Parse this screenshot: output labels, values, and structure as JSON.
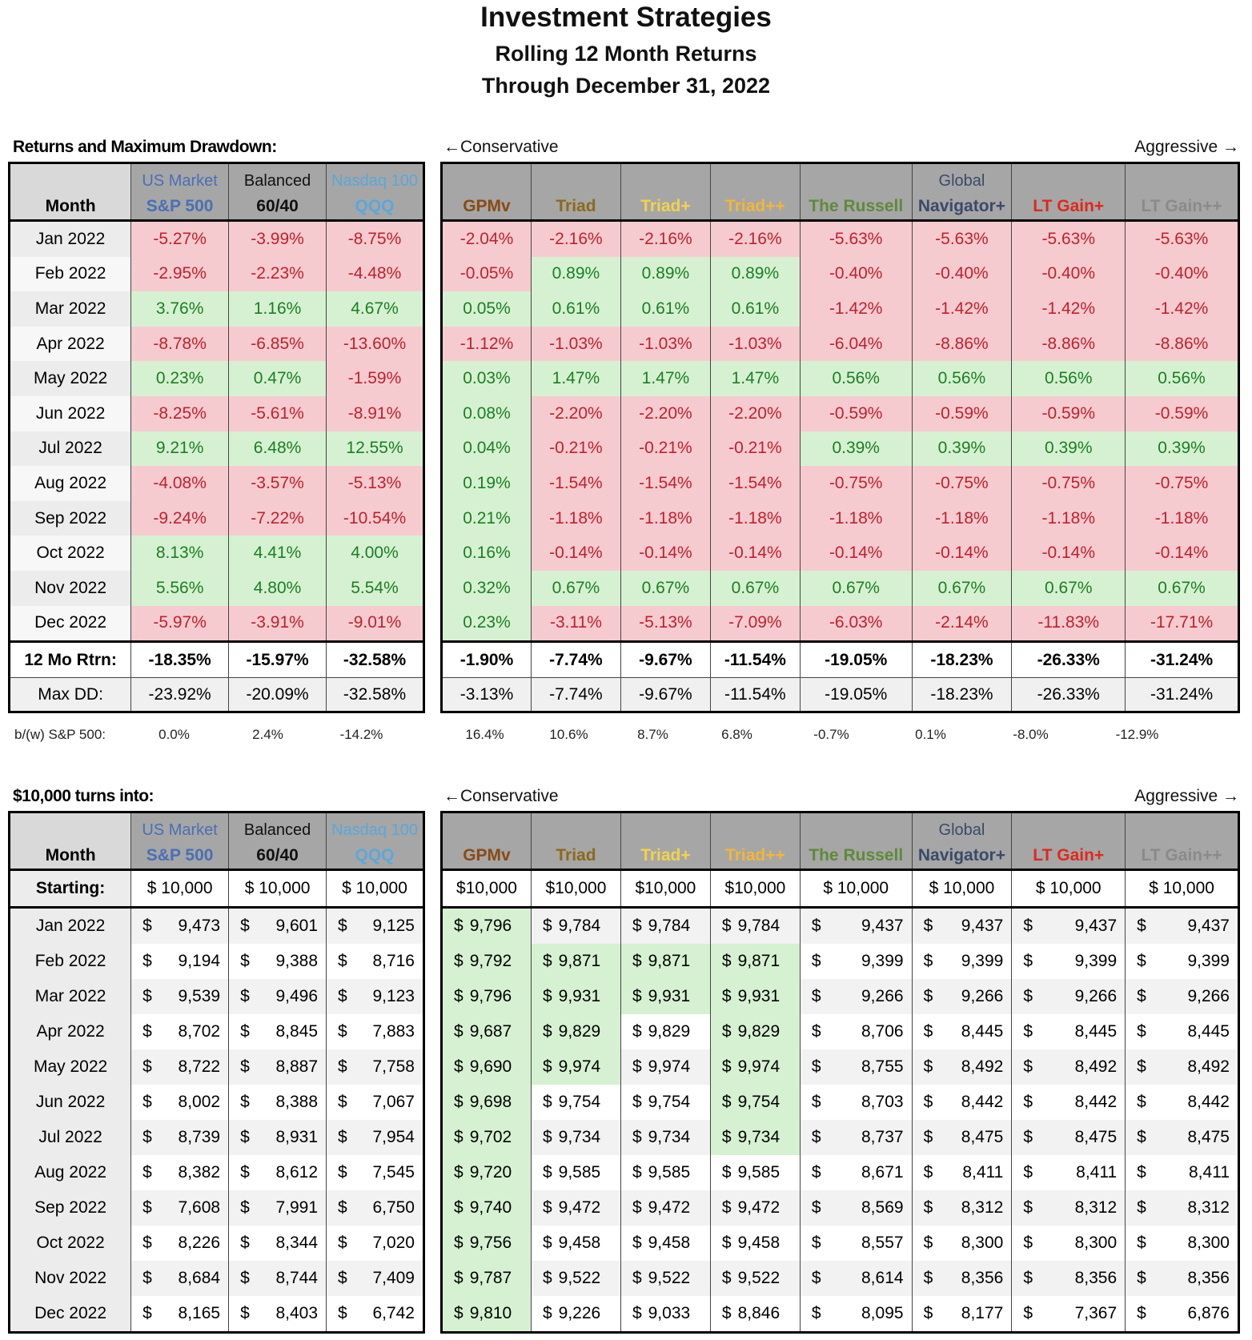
{
  "title": "Investment Strategies",
  "subtitle1": "Rolling 12 Month Returns",
  "subtitle2": "Through December 31, 2022",
  "colors": {
    "negative_bg": "#f6cbd0",
    "negative_text": "#c0212b",
    "positive_bg": "#d6f1d2",
    "positive_text": "#1b7f22",
    "header_bg": "#a6a6a6"
  },
  "labels": {
    "returns_section": "Returns and Maximum Drawdown:",
    "growth_section": "$10,000 turns into:",
    "conservative": "←Conservative",
    "aggressive": "Aggressive →",
    "month": "Month",
    "total_label": "12 Mo Rtrn:",
    "maxdd_label": "Max DD:",
    "bw_label": "b/(w) S&P 500:",
    "starting_label": "Starting:"
  },
  "benchmarks": [
    {
      "top": "US Market",
      "bottom": "S&P 500",
      "top_color": "#4a6fb5",
      "bottom_color": "#4a6fb5",
      "top_bold": false
    },
    {
      "top": "Balanced",
      "bottom": "60/40",
      "top_color": "#111111",
      "bottom_color": "#111111",
      "top_bold": false
    },
    {
      "top": "Nasdaq 100",
      "bottom": "QQQ",
      "top_color": "#5aa7dc",
      "bottom_color": "#5aa7dc",
      "top_bold": false
    }
  ],
  "strategies": [
    {
      "top": "",
      "bottom": "GPMv",
      "bottom_color": "#8a4a14"
    },
    {
      "top": "",
      "bottom": "Triad",
      "bottom_color": "#8c6a1c"
    },
    {
      "top": "",
      "bottom": "Triad+",
      "bottom_color": "#f2d34a"
    },
    {
      "top": "",
      "bottom": "Triad++",
      "bottom_color": "#f2b63a"
    },
    {
      "top": "",
      "bottom": "The Russell",
      "bottom_color": "#5f8a3a"
    },
    {
      "top": "Global",
      "bottom": "Navigator+",
      "bottom_color": "#3a4a6a"
    },
    {
      "top": "",
      "bottom": "LT Gain+",
      "bottom_color": "#e0281e"
    },
    {
      "top": "",
      "bottom": "LT Gain++",
      "bottom_color": "#8a8a8a"
    }
  ],
  "returns": [
    {
      "month": "Jan 2022",
      "values": [
        "-5.27%",
        "-3.99%",
        "-8.75%",
        "-2.04%",
        "-2.16%",
        "-2.16%",
        "-2.16%",
        "-5.63%",
        "-5.63%",
        "-5.63%",
        "-5.63%"
      ]
    },
    {
      "month": "Feb 2022",
      "values": [
        "-2.95%",
        "-2.23%",
        "-4.48%",
        "-0.05%",
        "0.89%",
        "0.89%",
        "0.89%",
        "-0.40%",
        "-0.40%",
        "-0.40%",
        "-0.40%"
      ]
    },
    {
      "month": "Mar 2022",
      "values": [
        "3.76%",
        "1.16%",
        "4.67%",
        "0.05%",
        "0.61%",
        "0.61%",
        "0.61%",
        "-1.42%",
        "-1.42%",
        "-1.42%",
        "-1.42%"
      ]
    },
    {
      "month": "Apr 2022",
      "values": [
        "-8.78%",
        "-6.85%",
        "-13.60%",
        "-1.12%",
        "-1.03%",
        "-1.03%",
        "-1.03%",
        "-6.04%",
        "-8.86%",
        "-8.86%",
        "-8.86%"
      ]
    },
    {
      "month": "May 2022",
      "values": [
        "0.23%",
        "0.47%",
        "-1.59%",
        "0.03%",
        "1.47%",
        "1.47%",
        "1.47%",
        "0.56%",
        "0.56%",
        "0.56%",
        "0.56%"
      ]
    },
    {
      "month": "Jun 2022",
      "values": [
        "-8.25%",
        "-5.61%",
        "-8.91%",
        "0.08%",
        "-2.20%",
        "-2.20%",
        "-2.20%",
        "-0.59%",
        "-0.59%",
        "-0.59%",
        "-0.59%"
      ]
    },
    {
      "month": "Jul 2022",
      "values": [
        "9.21%",
        "6.48%",
        "12.55%",
        "0.04%",
        "-0.21%",
        "-0.21%",
        "-0.21%",
        "0.39%",
        "0.39%",
        "0.39%",
        "0.39%"
      ]
    },
    {
      "month": "Aug 2022",
      "values": [
        "-4.08%",
        "-3.57%",
        "-5.13%",
        "0.19%",
        "-1.54%",
        "-1.54%",
        "-1.54%",
        "-0.75%",
        "-0.75%",
        "-0.75%",
        "-0.75%"
      ]
    },
    {
      "month": "Sep 2022",
      "values": [
        "-9.24%",
        "-7.22%",
        "-10.54%",
        "0.21%",
        "-1.18%",
        "-1.18%",
        "-1.18%",
        "-1.18%",
        "-1.18%",
        "-1.18%",
        "-1.18%"
      ]
    },
    {
      "month": "Oct 2022",
      "values": [
        "8.13%",
        "4.41%",
        "4.00%",
        "0.16%",
        "-0.14%",
        "-0.14%",
        "-0.14%",
        "-0.14%",
        "-0.14%",
        "-0.14%",
        "-0.14%"
      ]
    },
    {
      "month": "Nov 2022",
      "values": [
        "5.56%",
        "4.80%",
        "5.54%",
        "0.32%",
        "0.67%",
        "0.67%",
        "0.67%",
        "0.67%",
        "0.67%",
        "0.67%",
        "0.67%"
      ]
    },
    {
      "month": "Dec 2022",
      "values": [
        "-5.97%",
        "-3.91%",
        "-9.01%",
        "0.23%",
        "-3.11%",
        "-5.13%",
        "-7.09%",
        "-6.03%",
        "-2.14%",
        "-11.83%",
        "-17.71%"
      ]
    }
  ],
  "totals": [
    "-18.35%",
    "-15.97%",
    "-32.58%",
    "-1.90%",
    "-7.74%",
    "-9.67%",
    "-11.54%",
    "-19.05%",
    "-18.23%",
    "-26.33%",
    "-31.24%"
  ],
  "maxdd": [
    "-23.92%",
    "-20.09%",
    "-32.58%",
    "-3.13%",
    "-7.74%",
    "-9.67%",
    "-11.54%",
    "-19.05%",
    "-18.23%",
    "-26.33%",
    "-31.24%"
  ],
  "bw": [
    "0.0%",
    "2.4%",
    "-14.2%",
    "16.4%",
    "10.6%",
    "8.7%",
    "6.8%",
    "-0.7%",
    "0.1%",
    "-8.0%",
    "-12.9%"
  ],
  "starting": [
    "$ 10,000",
    "$ 10,000",
    "$ 10,000",
    "$10,000",
    "$10,000",
    "$10,000",
    "$10,000",
    "$ 10,000",
    "$ 10,000",
    "$ 10,000",
    "$ 10,000"
  ],
  "growth": [
    {
      "month": "Jan 2022",
      "values": [
        "9,473",
        "9,601",
        "9,125",
        "9,796",
        "9,784",
        "9,784",
        "9,784",
        "9,437",
        "9,437",
        "9,437",
        "9,437"
      ]
    },
    {
      "month": "Feb 2022",
      "values": [
        "9,194",
        "9,388",
        "8,716",
        "9,792",
        "9,871",
        "9,871",
        "9,871",
        "9,399",
        "9,399",
        "9,399",
        "9,399"
      ]
    },
    {
      "month": "Mar 2022",
      "values": [
        "9,539",
        "9,496",
        "9,123",
        "9,796",
        "9,931",
        "9,931",
        "9,931",
        "9,266",
        "9,266",
        "9,266",
        "9,266"
      ]
    },
    {
      "month": "Apr 2022",
      "values": [
        "8,702",
        "8,845",
        "7,883",
        "9,687",
        "9,829",
        "9,829",
        "9,829",
        "8,706",
        "8,445",
        "8,445",
        "8,445"
      ]
    },
    {
      "month": "May 2022",
      "values": [
        "8,722",
        "8,887",
        "7,758",
        "9,690",
        "9,974",
        "9,974",
        "9,974",
        "8,755",
        "8,492",
        "8,492",
        "8,492"
      ]
    },
    {
      "month": "Jun 2022",
      "values": [
        "8,002",
        "8,388",
        "7,067",
        "9,698",
        "9,754",
        "9,754",
        "9,754",
        "8,703",
        "8,442",
        "8,442",
        "8,442"
      ]
    },
    {
      "month": "Jul 2022",
      "values": [
        "8,739",
        "8,931",
        "7,954",
        "9,702",
        "9,734",
        "9,734",
        "9,734",
        "8,737",
        "8,475",
        "8,475",
        "8,475"
      ]
    },
    {
      "month": "Aug 2022",
      "values": [
        "8,382",
        "8,612",
        "7,545",
        "9,720",
        "9,585",
        "9,585",
        "9,585",
        "8,671",
        "8,411",
        "8,411",
        "8,411"
      ]
    },
    {
      "month": "Sep 2022",
      "values": [
        "7,608",
        "7,991",
        "6,750",
        "9,740",
        "9,472",
        "9,472",
        "9,472",
        "8,569",
        "8,312",
        "8,312",
        "8,312"
      ]
    },
    {
      "month": "Oct 2022",
      "values": [
        "8,226",
        "8,344",
        "7,020",
        "9,756",
        "9,458",
        "9,458",
        "9,458",
        "8,557",
        "8,300",
        "8,300",
        "8,300"
      ]
    },
    {
      "month": "Nov 2022",
      "values": [
        "8,684",
        "8,744",
        "7,409",
        "9,787",
        "9,522",
        "9,522",
        "9,522",
        "8,614",
        "8,356",
        "8,356",
        "8,356"
      ]
    },
    {
      "month": "Dec 2022",
      "values": [
        "8,165",
        "8,403",
        "6,742",
        "9,810",
        "9,226",
        "9,033",
        "8,846",
        "8,095",
        "8,177",
        "7,367",
        "6,876"
      ]
    }
  ],
  "growth_green": [
    [
      false,
      false,
      false,
      true,
      false,
      false,
      false,
      false,
      false,
      false,
      false
    ],
    [
      false,
      false,
      false,
      true,
      true,
      true,
      true,
      false,
      false,
      false,
      false
    ],
    [
      false,
      false,
      false,
      true,
      true,
      true,
      true,
      false,
      false,
      false,
      false
    ],
    [
      false,
      false,
      false,
      true,
      true,
      false,
      true,
      false,
      false,
      false,
      false
    ],
    [
      false,
      false,
      false,
      true,
      true,
      false,
      true,
      false,
      false,
      false,
      false
    ],
    [
      false,
      false,
      false,
      true,
      false,
      false,
      true,
      false,
      false,
      false,
      false
    ],
    [
      false,
      false,
      false,
      true,
      false,
      false,
      true,
      false,
      false,
      false,
      false
    ],
    [
      false,
      false,
      false,
      true,
      false,
      false,
      false,
      false,
      false,
      false,
      false
    ],
    [
      false,
      false,
      false,
      true,
      false,
      false,
      false,
      false,
      false,
      false,
      false
    ],
    [
      false,
      false,
      false,
      true,
      false,
      false,
      false,
      false,
      false,
      false,
      false
    ],
    [
      false,
      false,
      false,
      true,
      false,
      false,
      false,
      false,
      false,
      false,
      false
    ],
    [
      false,
      false,
      false,
      true,
      false,
      false,
      false,
      false,
      false,
      false,
      false
    ]
  ]
}
